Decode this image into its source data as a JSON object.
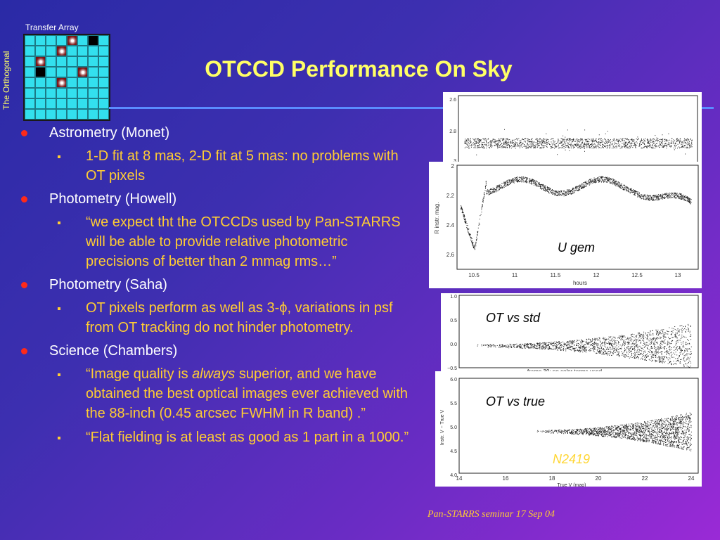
{
  "header": {
    "transfer_label": "Transfer Array",
    "orthogonal_label": "The Orthogonal",
    "title": "OTCCD Performance On Sky"
  },
  "bullets": [
    {
      "text": "Astrometry (Monet)",
      "subs": [
        {
          "html": "1-D fit at 8 mas, 2-D fit at 5 mas: no problems with OT pixels"
        }
      ]
    },
    {
      "text": "Photometry (Howell)",
      "subs": [
        {
          "html": "“we expect tht the OTCCDs used by Pan-STARRS will be able to provide relative photometric precisions of better than 2 mmag rms…”"
        }
      ]
    },
    {
      "text": "Photometry (Saha)",
      "subs": [
        {
          "html": "OT pixels perform as well as 3-ϕ, variations in psf from OT tracking do not hinder photometry."
        }
      ]
    },
    {
      "text": "Science (Chambers)",
      "subs": [
        {
          "pre": "“Image quality is ",
          "em": "always",
          "post": " superior, and we have obtained the best optical images ever achieved with the 88-inch (0.45 arcsec FWHM in R band) .”"
        },
        {
          "html": "“Flat fielding is at least as good as 1 part in a 1000.”"
        }
      ]
    }
  ],
  "plots": {
    "p1": {
      "yticks": [
        "2.6",
        "2.8",
        "3"
      ]
    },
    "p2": {
      "label": "U gem",
      "ylabel": "R instr. mag.",
      "xlabel": "hours",
      "yticks": [
        "2",
        "2.2",
        "2.4",
        "2.6"
      ],
      "xticks": [
        "10.5",
        "11",
        "11.5",
        "12",
        "12.5",
        "13"
      ]
    },
    "p3": {
      "label": "OT vs std",
      "yticks": [
        "1.0",
        "0.5",
        "0.0",
        "−0.5"
      ],
      "caption": "frame 39: no color terms used"
    },
    "p4": {
      "label": "OT vs true",
      "ylabel": "Instr. V − True V",
      "xlabel": "True V (mag)",
      "yticks": [
        "6.0",
        "5.5",
        "5.0",
        "4.5",
        "4.0"
      ],
      "xticks": [
        "14",
        "16",
        "18",
        "20",
        "22",
        "24"
      ]
    }
  },
  "n2419": "N2419",
  "footer": "Pan-STARRS seminar 17 Sep 04",
  "colors": {
    "title": "#ffff66",
    "bullet": "#ff2a1a",
    "sub": "#ffcc33",
    "rule": "#5a8cff"
  }
}
